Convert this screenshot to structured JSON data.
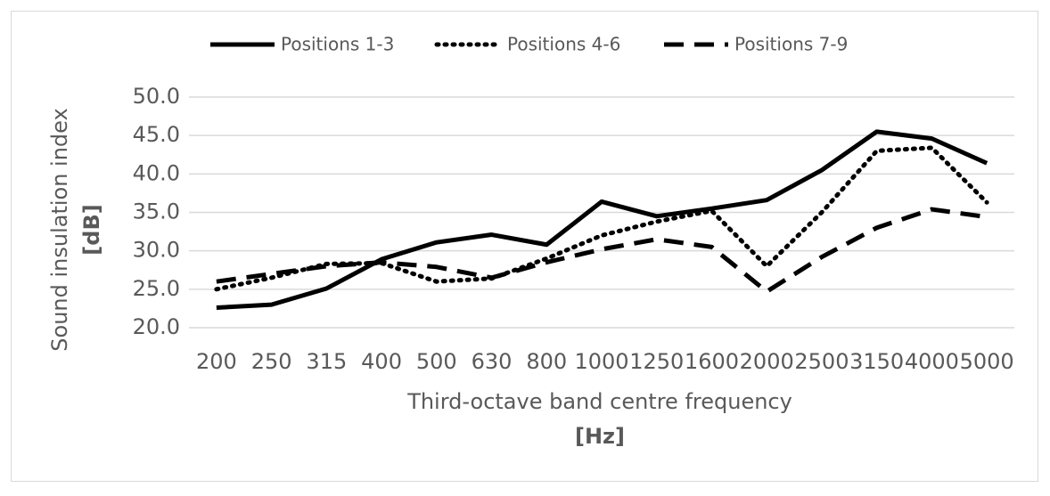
{
  "chart_data": {
    "type": "line",
    "y_label": "Sound insulation index",
    "y_unit": "[dB]",
    "x_label": "Third-octave band centre frequency",
    "x_unit": "[Hz]",
    "categories": [
      "200",
      "250",
      "315",
      "400",
      "500",
      "630",
      "800",
      "1000",
      "1250",
      "1600",
      "2000",
      "2500",
      "3150",
      "4000",
      "5000"
    ],
    "series": [
      {
        "name": "Positions 1-3",
        "color": "#000000",
        "dash": "solid",
        "values": [
          22.6,
          23.0,
          25.1,
          28.9,
          31.1,
          32.1,
          30.8,
          36.4,
          34.5,
          35.5,
          36.6,
          40.5,
          45.5,
          44.6,
          41.4
        ]
      },
      {
        "name": "Positions 4-6",
        "color": "#000000",
        "dash": "dotted",
        "values": [
          25.0,
          26.5,
          28.3,
          28.4,
          26.0,
          26.4,
          29.0,
          32.0,
          33.8,
          35.2,
          28.0,
          35.0,
          43.0,
          43.4,
          36.3
        ]
      },
      {
        "name": "Positions 7-9",
        "color": "#000000",
        "dash": "dashed",
        "values": [
          26.0,
          27.0,
          28.0,
          28.5,
          27.9,
          26.5,
          28.5,
          30.2,
          31.5,
          30.5,
          24.7,
          29.2,
          33.0,
          35.4,
          34.4
        ]
      }
    ],
    "ylim": [
      20,
      50
    ],
    "yticks": [
      {
        "value": 20,
        "label": "20.0"
      },
      {
        "value": 25,
        "label": "25.0"
      },
      {
        "value": 30,
        "label": "30.0"
      },
      {
        "value": 35,
        "label": "35.0"
      },
      {
        "value": 40,
        "label": "40.0"
      },
      {
        "value": 45,
        "label": "45.0"
      },
      {
        "value": 50,
        "label": "50.0"
      }
    ],
    "grid": true,
    "legend": "top"
  }
}
